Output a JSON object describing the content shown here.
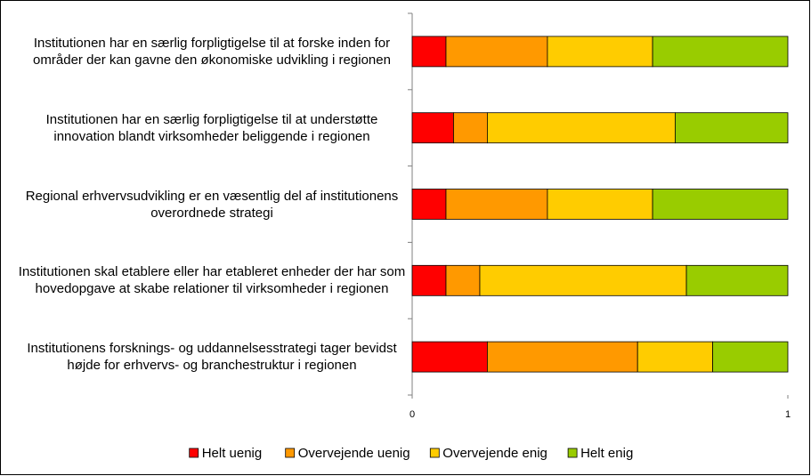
{
  "chart_data": {
    "type": "stacked-barh",
    "categories": [
      "Institutionen har en særlig forpligtigelse til at forske inden for områder der kan gavne den økonomiske udvikling i regionen",
      "Institutionen har en særlig forpligtigelse til at understøtte innovation blandt virksomheder beliggende i regionen",
      "Regional erhvervsudvikling er en væsentlig del af institutionens overordnede strategi",
      "Institutionen skal etablere eller har etableret enheder der har som hovedopgave at skabe relationer til virksomheder i regionen",
      "Institutionens forsknings- og uddannelsesstrategi tager bevidst højde for erhvervs- og branchestruktur i regionen"
    ],
    "series": [
      {
        "name": "Helt uenig",
        "color": "#ff0000",
        "values": [
          0.09,
          0.11,
          0.09,
          0.09,
          0.2
        ]
      },
      {
        "name": "Overvejende uenig",
        "color": "#ff9900",
        "values": [
          0.27,
          0.09,
          0.27,
          0.09,
          0.4
        ]
      },
      {
        "name": "Overvejende enig",
        "color": "#ffcc00",
        "values": [
          0.28,
          0.5,
          0.28,
          0.55,
          0.2
        ]
      },
      {
        "name": "Helt enig",
        "color": "#99cc00",
        "values": [
          0.36,
          0.3,
          0.36,
          0.27,
          0.2
        ]
      }
    ],
    "xlim": [
      0,
      1
    ],
    "xticks": [
      0,
      1
    ],
    "legend": "bottom"
  }
}
